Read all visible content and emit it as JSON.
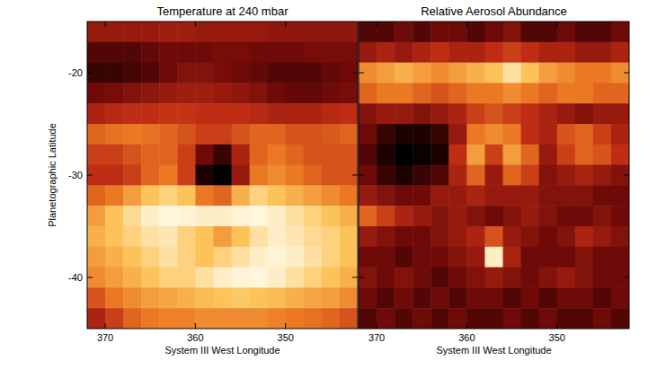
{
  "chart_data": [
    {
      "type": "heatmap",
      "title": "Temperature at 240 mbar",
      "x_label": "System III West Longitude",
      "y_label": "Planetographic Latitude",
      "xlim": [
        372,
        342
      ],
      "ylim": [
        -45,
        -15
      ],
      "xticks": [
        370,
        360,
        350
      ],
      "yticks": [
        -20,
        -30,
        -40
      ],
      "zlim": [
        0,
        1
      ],
      "x": [
        371,
        369,
        367,
        365,
        363,
        361,
        359,
        357,
        355,
        353,
        351,
        349,
        347,
        345,
        343
      ],
      "y": [
        -16,
        -18,
        -20,
        -22,
        -24,
        -26,
        -28,
        -30,
        -32,
        -34,
        -36,
        -38,
        -40,
        -42,
        -44
      ],
      "z": [
        [
          0.3,
          0.3,
          0.3,
          0.3,
          0.32,
          0.32,
          0.3,
          0.3,
          0.3,
          0.3,
          0.28,
          0.28,
          0.28,
          0.28,
          0.28
        ],
        [
          0.15,
          0.15,
          0.15,
          0.18,
          0.2,
          0.2,
          0.2,
          0.22,
          0.22,
          0.2,
          0.2,
          0.2,
          0.22,
          0.22,
          0.22
        ],
        [
          0.1,
          0.1,
          0.12,
          0.15,
          0.2,
          0.25,
          0.25,
          0.22,
          0.2,
          0.18,
          0.15,
          0.15,
          0.15,
          0.18,
          0.2
        ],
        [
          0.2,
          0.22,
          0.25,
          0.28,
          0.3,
          0.32,
          0.32,
          0.3,
          0.28,
          0.25,
          0.2,
          0.18,
          0.18,
          0.2,
          0.22
        ],
        [
          0.35,
          0.38,
          0.4,
          0.4,
          0.42,
          0.42,
          0.4,
          0.4,
          0.4,
          0.38,
          0.35,
          0.35,
          0.35,
          0.38,
          0.4
        ],
        [
          0.55,
          0.58,
          0.6,
          0.58,
          0.55,
          0.5,
          0.45,
          0.45,
          0.5,
          0.55,
          0.55,
          0.5,
          0.5,
          0.52,
          0.55
        ],
        [
          0.45,
          0.45,
          0.5,
          0.55,
          0.55,
          0.45,
          0.2,
          0.1,
          0.35,
          0.55,
          0.6,
          0.55,
          0.5,
          0.5,
          0.5
        ],
        [
          0.4,
          0.4,
          0.45,
          0.55,
          0.6,
          0.45,
          0.05,
          0.0,
          0.3,
          0.6,
          0.65,
          0.6,
          0.55,
          0.5,
          0.5
        ],
        [
          0.55,
          0.6,
          0.7,
          0.8,
          0.85,
          0.8,
          0.6,
          0.55,
          0.75,
          0.85,
          0.8,
          0.75,
          0.7,
          0.65,
          0.6
        ],
        [
          0.7,
          0.8,
          0.88,
          0.95,
          0.98,
          0.97,
          0.95,
          0.95,
          0.97,
          0.98,
          0.95,
          0.9,
          0.85,
          0.8,
          0.75
        ],
        [
          0.75,
          0.8,
          0.85,
          0.9,
          0.92,
          0.85,
          0.8,
          0.7,
          0.8,
          0.9,
          0.95,
          0.92,
          0.88,
          0.85,
          0.8
        ],
        [
          0.7,
          0.75,
          0.8,
          0.85,
          0.9,
          0.85,
          0.8,
          0.85,
          0.9,
          0.95,
          0.97,
          0.95,
          0.9,
          0.85,
          0.8
        ],
        [
          0.65,
          0.7,
          0.75,
          0.8,
          0.85,
          0.85,
          0.9,
          0.95,
          0.97,
          0.98,
          0.95,
          0.9,
          0.85,
          0.8,
          0.75
        ],
        [
          0.5,
          0.6,
          0.65,
          0.7,
          0.72,
          0.75,
          0.78,
          0.8,
          0.82,
          0.8,
          0.78,
          0.75,
          0.72,
          0.7,
          0.65
        ],
        [
          0.35,
          0.45,
          0.55,
          0.6,
          0.62,
          0.62,
          0.65,
          0.65,
          0.65,
          0.65,
          0.62,
          0.6,
          0.58,
          0.55,
          0.5
        ]
      ]
    },
    {
      "type": "heatmap",
      "title": "Relative Aerosol Abundance",
      "x_label": "System III West Longitude",
      "tick_labels": "x",
      "xlim": [
        372,
        342
      ],
      "ylim": [
        -45,
        -15
      ],
      "xticks": [
        370,
        360,
        350
      ],
      "yticks": [
        -20,
        -30,
        -40
      ],
      "zlim": [
        0,
        1
      ],
      "x": [
        371,
        369,
        367,
        365,
        363,
        361,
        359,
        357,
        355,
        353,
        351,
        349,
        347,
        345,
        343
      ],
      "y": [
        -16,
        -18,
        -20,
        -22,
        -24,
        -26,
        -28,
        -30,
        -32,
        -34,
        -36,
        -38,
        -40,
        -42,
        -44
      ],
      "z": [
        [
          0.15,
          0.15,
          0.2,
          0.15,
          0.2,
          0.2,
          0.15,
          0.2,
          0.25,
          0.15,
          0.15,
          0.2,
          0.15,
          0.15,
          0.2
        ],
        [
          0.3,
          0.35,
          0.3,
          0.35,
          0.4,
          0.35,
          0.35,
          0.4,
          0.45,
          0.4,
          0.35,
          0.35,
          0.3,
          0.3,
          0.35
        ],
        [
          0.65,
          0.7,
          0.75,
          0.7,
          0.65,
          0.7,
          0.75,
          0.8,
          0.9,
          0.8,
          0.7,
          0.65,
          0.6,
          0.6,
          0.65
        ],
        [
          0.55,
          0.6,
          0.6,
          0.55,
          0.5,
          0.55,
          0.6,
          0.6,
          0.65,
          0.6,
          0.55,
          0.6,
          0.6,
          0.55,
          0.55
        ],
        [
          0.25,
          0.3,
          0.3,
          0.25,
          0.3,
          0.35,
          0.45,
          0.5,
          0.45,
          0.4,
          0.35,
          0.3,
          0.25,
          0.3,
          0.3
        ],
        [
          0.2,
          0.1,
          0.05,
          0.05,
          0.1,
          0.3,
          0.6,
          0.65,
          0.6,
          0.4,
          0.35,
          0.5,
          0.55,
          0.45,
          0.35
        ],
        [
          0.15,
          0.05,
          0.0,
          0.02,
          0.05,
          0.4,
          0.7,
          0.45,
          0.7,
          0.55,
          0.3,
          0.45,
          0.55,
          0.5,
          0.4
        ],
        [
          0.2,
          0.1,
          0.05,
          0.1,
          0.15,
          0.35,
          0.55,
          0.3,
          0.55,
          0.45,
          0.25,
          0.3,
          0.35,
          0.3,
          0.25
        ],
        [
          0.3,
          0.25,
          0.2,
          0.2,
          0.3,
          0.3,
          0.35,
          0.3,
          0.3,
          0.3,
          0.25,
          0.25,
          0.25,
          0.2,
          0.2
        ],
        [
          0.55,
          0.45,
          0.35,
          0.3,
          0.25,
          0.3,
          0.25,
          0.2,
          0.25,
          0.3,
          0.25,
          0.2,
          0.2,
          0.25,
          0.2
        ],
        [
          0.3,
          0.25,
          0.2,
          0.2,
          0.25,
          0.3,
          0.35,
          0.5,
          0.3,
          0.25,
          0.2,
          0.25,
          0.35,
          0.3,
          0.25
        ],
        [
          0.2,
          0.2,
          0.15,
          0.2,
          0.2,
          0.25,
          0.3,
          0.95,
          0.35,
          0.2,
          0.2,
          0.2,
          0.25,
          0.2,
          0.2
        ],
        [
          0.25,
          0.2,
          0.25,
          0.2,
          0.15,
          0.2,
          0.25,
          0.3,
          0.25,
          0.2,
          0.25,
          0.3,
          0.25,
          0.2,
          0.2
        ],
        [
          0.2,
          0.15,
          0.2,
          0.15,
          0.2,
          0.15,
          0.2,
          0.2,
          0.15,
          0.2,
          0.15,
          0.2,
          0.2,
          0.15,
          0.2
        ],
        [
          0.15,
          0.2,
          0.15,
          0.2,
          0.15,
          0.2,
          0.15,
          0.15,
          0.2,
          0.15,
          0.2,
          0.15,
          0.15,
          0.2,
          0.15
        ]
      ]
    }
  ]
}
